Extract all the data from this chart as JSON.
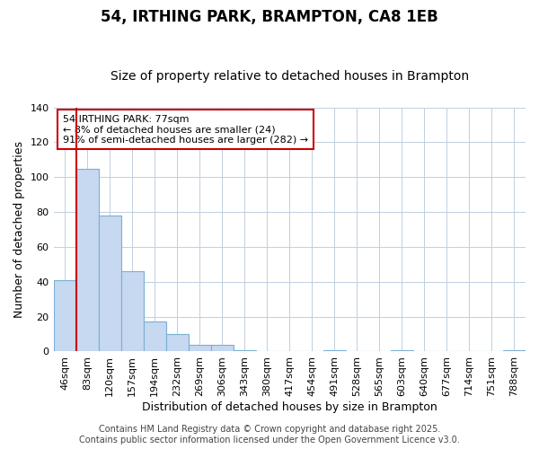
{
  "title": "54, IRTHING PARK, BRAMPTON, CA8 1EB",
  "subtitle": "Size of property relative to detached houses in Brampton",
  "xlabel": "Distribution of detached houses by size in Brampton",
  "ylabel": "Number of detached properties",
  "categories": [
    "46sqm",
    "83sqm",
    "120sqm",
    "157sqm",
    "194sqm",
    "232sqm",
    "269sqm",
    "306sqm",
    "343sqm",
    "380sqm",
    "417sqm",
    "454sqm",
    "491sqm",
    "528sqm",
    "565sqm",
    "603sqm",
    "640sqm",
    "677sqm",
    "714sqm",
    "751sqm",
    "788sqm"
  ],
  "values": [
    41,
    105,
    78,
    46,
    17,
    10,
    4,
    4,
    1,
    0,
    0,
    0,
    1,
    0,
    0,
    1,
    0,
    0,
    0,
    0,
    1
  ],
  "bar_color": "#c6d9f0",
  "bar_edge_color": "#7bafd4",
  "grid_color": "#c0cfe0",
  "background_color": "#ffffff",
  "vline_color": "#cc0000",
  "vline_position": 0.5,
  "annotation_text": "54 IRTHING PARK: 77sqm\n← 8% of detached houses are smaller (24)\n91% of semi-detached houses are larger (282) →",
  "annotation_box_facecolor": "#ffffff",
  "annotation_box_edgecolor": "#cc0000",
  "ylim": [
    0,
    140
  ],
  "yticks": [
    0,
    20,
    40,
    60,
    80,
    100,
    120,
    140
  ],
  "footer_line1": "Contains HM Land Registry data © Crown copyright and database right 2025.",
  "footer_line2": "Contains public sector information licensed under the Open Government Licence v3.0.",
  "title_fontsize": 12,
  "subtitle_fontsize": 10,
  "axis_label_fontsize": 9,
  "tick_fontsize": 8,
  "annotation_fontsize": 8,
  "footer_fontsize": 7
}
